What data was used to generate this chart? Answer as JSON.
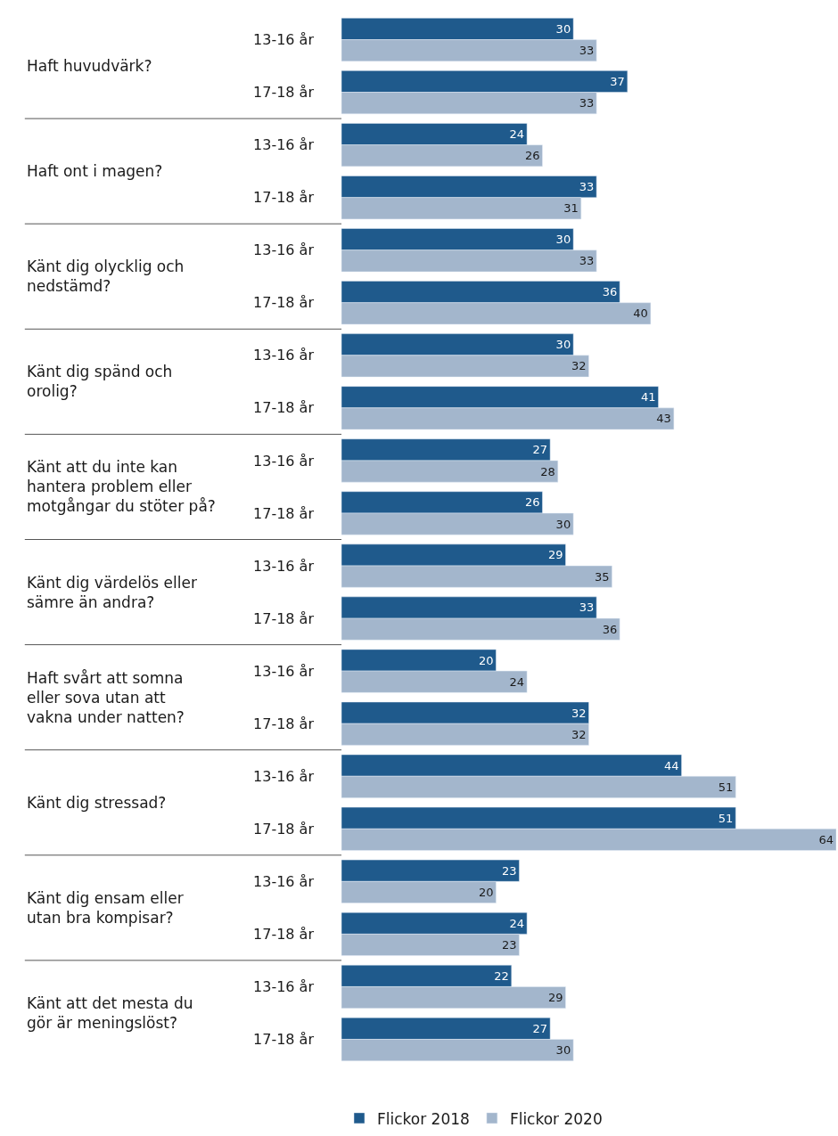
{
  "chart_data": {
    "type": "bar",
    "orientation": "horizontal",
    "data_labels": true,
    "legend": "bottom",
    "tick_labels": "y",
    "xlim": [
      0,
      64
    ],
    "categories": [
      "13-16 år",
      "17-18 år",
      "13-16 år",
      "17-18 år",
      "13-16 år",
      "17-18 år",
      "13-16 år",
      "17-18 år",
      "13-16 år",
      "17-18 år",
      "13-16 år",
      "17-18 år",
      "13-16 år",
      "17-18 år",
      "13-16 år",
      "17-18 år",
      "13-16 år",
      "17-18 år",
      "13-16 år",
      "17-18 år"
    ],
    "series": [
      {
        "name": "Flickor 2018",
        "color": "#1f5a8c",
        "values": [
          30,
          37,
          24,
          33,
          30,
          36,
          30,
          41,
          27,
          26,
          29,
          33,
          20,
          32,
          44,
          51,
          23,
          24,
          22,
          27
        ]
      },
      {
        "name": "Flickor 2020",
        "color": "#a3b6cc",
        "values": [
          33,
          33,
          26,
          31,
          33,
          40,
          32,
          43,
          28,
          30,
          35,
          36,
          24,
          32,
          51,
          64,
          20,
          23,
          29,
          30
        ]
      }
    ],
    "annotations": [
      "Haft huvudvärk?",
      "Haft ont i magen?",
      "Känt dig olycklig och nedstämd?",
      "Känt dig spänd och orolig?",
      "Känt att du inte kan hantera problem eller motgångar du stöter på?",
      "Känt dig värdelös eller sämre än andra?",
      "Haft svårt att somna eller sova utan att vakna under natten?",
      "Känt dig stressad?",
      "Känt dig ensam eller utan bra kompisar?",
      "Känt att det mesta du gör är meningslöst?"
    ]
  }
}
